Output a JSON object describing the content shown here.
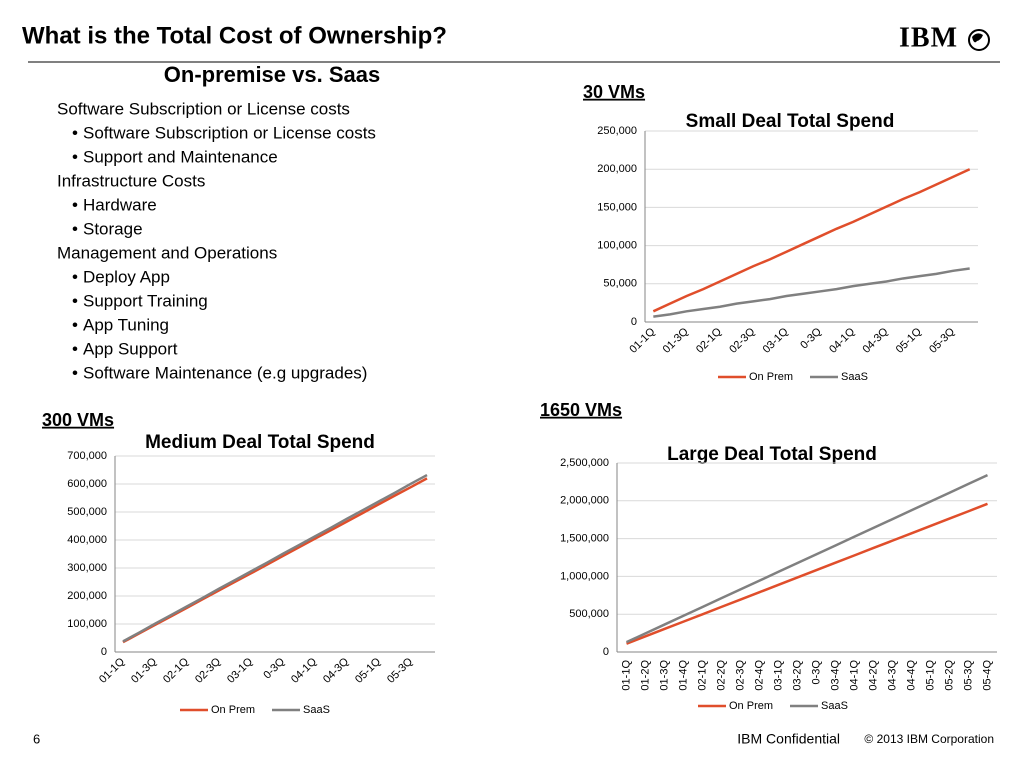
{
  "slide": {
    "title": "What is the Total Cost of Ownership?",
    "logo": "IBM",
    "subtitle": "On-premise vs. Saas",
    "sections": [
      {
        "heading": "Software Subscription or License costs",
        "items": [
          "Software Subscription or License costs",
          "Support and Maintenance"
        ]
      },
      {
        "heading": "Infrastructure Costs",
        "items": [
          "Hardware",
          "Storage"
        ]
      },
      {
        "heading": "Management and Operations",
        "items": [
          "Deploy App",
          "Support Training",
          "App Tuning",
          "App Support",
          "Software Maintenance (e.g upgrades)"
        ]
      }
    ],
    "page_number": "6",
    "confidential": "IBM Confidential",
    "copyright": "© 2013 IBM Corporation"
  },
  "chart_data": [
    {
      "type": "line",
      "heading": "30 VMs",
      "title": "Small Deal Total Spend",
      "categories": [
        "01-1Q",
        null,
        "01-3Q",
        null,
        "02-1Q",
        null,
        "02-3Q",
        null,
        "03-1Q",
        null,
        "0-3Q",
        null,
        "04-1Q",
        null,
        "04-3Q",
        null,
        "05-1Q",
        null,
        "05-3Q",
        null
      ],
      "series": [
        {
          "name": "On Prem",
          "color": "#e04e2b",
          "values": [
            14000,
            24000,
            34000,
            43000,
            53000,
            63000,
            73000,
            82000,
            92000,
            102000,
            112000,
            122000,
            131000,
            141000,
            151000,
            161000,
            170000,
            180000,
            190000,
            200000
          ]
        },
        {
          "name": "SaaS",
          "color": "#808080",
          "values": [
            7000,
            10000,
            14000,
            17000,
            20000,
            24000,
            27000,
            30000,
            34000,
            37000,
            40000,
            43000,
            47000,
            50000,
            53000,
            57000,
            60000,
            63000,
            67000,
            70000
          ]
        }
      ],
      "ylim": [
        0,
        250000
      ],
      "yticks": [
        0,
        {
          "value": 50000,
          "label": "50,000"
        },
        {
          "value": 100000,
          "label": "100,000"
        },
        {
          "value": 150000,
          "label": "150,000"
        },
        {
          "value": 200000,
          "label": "200,000"
        },
        {
          "value": 250000,
          "label": "250,000"
        }
      ],
      "grid": true,
      "legend": "bottom"
    },
    {
      "type": "line",
      "heading": "300 VMs",
      "title": "Medium Deal Total Spend",
      "categories": [
        "01-1Q",
        null,
        "01-3Q",
        null,
        "02-1Q",
        null,
        "02-3Q",
        null,
        "03-1Q",
        null,
        "0-3Q",
        null,
        "04-1Q",
        null,
        "04-3Q",
        null,
        "05-1Q",
        null,
        "05-3Q",
        null
      ],
      "series": [
        {
          "name": "On Prem",
          "color": "#e04e2b",
          "values": [
            35000,
            66000,
            97000,
            127000,
            158000,
            189000,
            220000,
            251000,
            281000,
            312000,
            343000,
            374000,
            405000,
            435000,
            466000,
            497000,
            528000,
            559000,
            589000,
            620000
          ]
        },
        {
          "name": "SaaS",
          "color": "#808080",
          "values": [
            38000,
            69000,
            101000,
            132000,
            163000,
            194000,
            226000,
            257000,
            288000,
            319000,
            351000,
            382000,
            413000,
            444000,
            476000,
            507000,
            538000,
            569000,
            601000,
            632000
          ]
        }
      ],
      "ylim": [
        0,
        700000
      ],
      "yticks": [
        0,
        {
          "value": 100000,
          "label": "100,000"
        },
        {
          "value": 200000,
          "label": "200,000"
        },
        {
          "value": 300000,
          "label": "300,000"
        },
        {
          "value": 400000,
          "label": "400,000"
        },
        {
          "value": 500000,
          "label": "500,000"
        },
        {
          "value": 600000,
          "label": "600,000"
        },
        {
          "value": 700000,
          "label": "700,000"
        }
      ],
      "grid": true,
      "legend": "bottom"
    },
    {
      "type": "line",
      "heading": "1650 VMs",
      "title": "Large Deal Total Spend",
      "categories": [
        "01-1Q",
        "01-2Q",
        "01-3Q",
        "01-4Q",
        "02-1Q",
        "02-2Q",
        "02-3Q",
        "02-4Q",
        "03-1Q",
        "03-2Q",
        "0-3Q",
        "03-4Q",
        "04-1Q",
        "04-2Q",
        "04-3Q",
        "04-4Q",
        "05-1Q",
        "05-2Q",
        "05-3Q",
        "05-4Q"
      ],
      "series": [
        {
          "name": "On Prem",
          "color": "#e04e2b",
          "values": [
            110000,
            207000,
            305000,
            402000,
            499000,
            597000,
            694000,
            791000,
            889000,
            986000,
            1084000,
            1181000,
            1278000,
            1376000,
            1473000,
            1570000,
            1668000,
            1765000,
            1862000,
            1960000
          ]
        },
        {
          "name": "SaaS",
          "color": "#808080",
          "values": [
            130000,
            246000,
            363000,
            479000,
            595000,
            712000,
            828000,
            944000,
            1061000,
            1177000,
            1293000,
            1409000,
            1526000,
            1642000,
            1758000,
            1875000,
            1991000,
            2107000,
            2224000,
            2340000
          ]
        }
      ],
      "ylim": [
        0,
        2500000
      ],
      "yticks": [
        0,
        {
          "value": 500000,
          "label": "500,000"
        },
        {
          "value": 1000000,
          "label": "1,000,000"
        },
        {
          "value": 1500000,
          "label": "1,500,000"
        },
        {
          "value": 2000000,
          "label": "2,000,000"
        },
        {
          "value": 2500000,
          "label": "2,500,000"
        }
      ],
      "grid": true,
      "legend": "bottom"
    }
  ]
}
